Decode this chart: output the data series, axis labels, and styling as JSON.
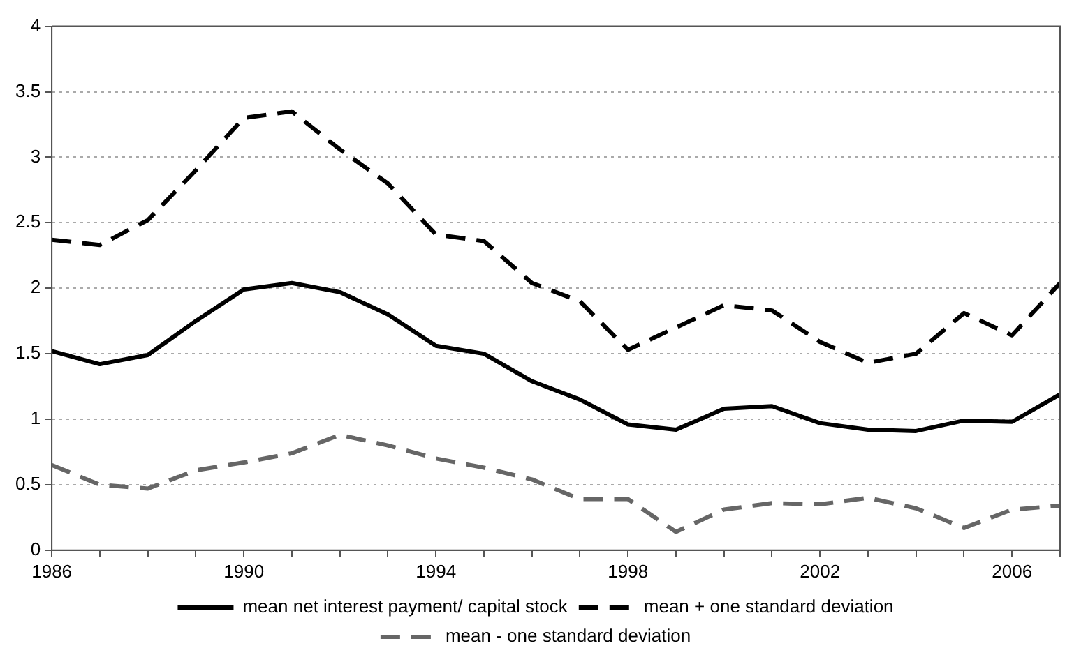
{
  "chart_data": {
    "type": "line",
    "categories": [
      "1986",
      null,
      null,
      null,
      "1990",
      null,
      null,
      null,
      "1994",
      null,
      null,
      null,
      "1998",
      null,
      null,
      null,
      "2002",
      null,
      null,
      null,
      "2006",
      null
    ],
    "series": [
      {
        "name": "mean net interest payment/ capital stock",
        "color": "#000000",
        "line_style": "solid",
        "values": [
          1.52,
          1.42,
          1.49,
          1.75,
          1.99,
          2.04,
          1.97,
          1.8,
          1.56,
          1.5,
          1.29,
          1.15,
          0.96,
          0.92,
          1.08,
          1.1,
          0.97,
          0.92,
          0.91,
          0.99,
          0.98,
          1.19
        ]
      },
      {
        "name": "mean + one standard deviation",
        "color": "#000000",
        "line_style": "dashed",
        "values": [
          2.37,
          2.33,
          2.52,
          2.9,
          3.3,
          3.35,
          3.06,
          2.8,
          2.41,
          2.36,
          2.04,
          1.9,
          1.53,
          1.7,
          1.87,
          1.83,
          1.59,
          1.43,
          1.5,
          1.81,
          1.64,
          2.04
        ]
      },
      {
        "name": "mean - one standard deviation",
        "color": "#666666",
        "line_style": "dashed",
        "values": [
          0.65,
          0.5,
          0.47,
          0.61,
          0.67,
          0.74,
          0.88,
          0.8,
          0.7,
          0.63,
          0.54,
          0.39,
          0.39,
          0.14,
          0.31,
          0.36,
          0.35,
          0.4,
          0.32,
          0.17,
          0.31,
          0.34
        ]
      }
    ],
    "ylim": [
      0,
      4
    ],
    "yticks": [
      0,
      0.5,
      1,
      1.5,
      2,
      2.5,
      3,
      3.5,
      4
    ],
    "grid": "y",
    "legend": "bottom",
    "marker": "none"
  }
}
